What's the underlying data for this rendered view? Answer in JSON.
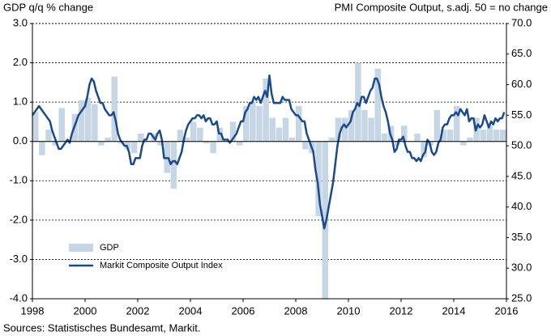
{
  "chart_data": {
    "type": "combo",
    "y_label": "GDP q/q % change",
    "y2_label": "PMI Composite Output, s.adj. 50 = no change",
    "source": "Sources: Statistisches Bundesamt, Markit.",
    "xlim": [
      1998,
      2016
    ],
    "xticks": [
      1998,
      2000,
      2002,
      2004,
      2006,
      2008,
      2010,
      2012,
      2014,
      2016
    ],
    "ylim": [
      -4,
      3
    ],
    "yticks": [
      {
        "value": 3,
        "label": "3.0"
      },
      {
        "value": 2,
        "label": "2.0"
      },
      {
        "value": 1,
        "label": "1.0"
      },
      {
        "value": 0,
        "label": "0.0"
      },
      {
        "value": -1,
        "label": "-1.0"
      },
      {
        "value": -2,
        "label": "-2.0"
      },
      {
        "value": -3,
        "label": "-3.0"
      },
      {
        "value": -4,
        "label": "-4.0"
      }
    ],
    "y2lim": [
      25,
      70
    ],
    "y2ticks": [
      {
        "value": 70,
        "label": "70.0"
      },
      {
        "value": 65,
        "label": "65.0"
      },
      {
        "value": 60,
        "label": "60.0"
      },
      {
        "value": 55,
        "label": "55.0"
      },
      {
        "value": 50,
        "label": "50.0"
      },
      {
        "value": 45,
        "label": "45.0"
      },
      {
        "value": 40,
        "label": "40.0"
      },
      {
        "value": 35,
        "label": "35.0"
      },
      {
        "value": 30,
        "label": "30.0"
      },
      {
        "value": 25,
        "label": "25.0"
      }
    ],
    "grid": true,
    "legend": "lower left",
    "series": [
      {
        "name": "GDP",
        "type": "bar",
        "color": "#c6d6e5",
        "x": [
          1998,
          1998.25,
          1998.5,
          1998.75,
          1999,
          1999.25,
          1999.5,
          1999.75,
          2000,
          2000.25,
          2000.5,
          2000.75,
          2001,
          2001.25,
          2001.5,
          2001.75,
          2002,
          2002.25,
          2002.5,
          2002.75,
          2003,
          2003.25,
          2003.5,
          2003.75,
          2004,
          2004.25,
          2004.5,
          2004.75,
          2005,
          2005.25,
          2005.5,
          2005.75,
          2006,
          2006.25,
          2006.5,
          2006.75,
          2007,
          2007.25,
          2007.5,
          2007.75,
          2008,
          2008.25,
          2008.5,
          2008.75,
          2009,
          2009.25,
          2009.5,
          2009.75,
          2010,
          2010.25,
          2010.5,
          2010.75,
          2011,
          2011.25,
          2011.5,
          2011.75,
          2012,
          2012.25,
          2012.5,
          2012.75,
          2013,
          2013.25,
          2013.5,
          2013.75,
          2014,
          2014.25,
          2014.5,
          2014.75,
          2015,
          2015.25,
          2015.5,
          2015.75
        ],
        "values": [
          0.75,
          -0.35,
          0.3,
          -0.1,
          0.85,
          0.05,
          0.7,
          1.05,
          1.1,
          0.95,
          -0.1,
          0.1,
          1.65,
          -0.05,
          -0.2,
          -0.3,
          0.2,
          0.0,
          0.2,
          -0.1,
          -0.8,
          -1.2,
          0.3,
          0.1,
          0.5,
          0.35,
          -0.05,
          -0.3,
          0.35,
          0.0,
          0.5,
          -0.1,
          0.9,
          1.0,
          0.9,
          1.6,
          0.6,
          0.35,
          0.6,
          0.1,
          0.9,
          -0.2,
          -0.3,
          -1.9,
          -4.0,
          0.1,
          0.6,
          0.6,
          0.8,
          2.0,
          0.8,
          0.6,
          1.85,
          0.2,
          0.4,
          -0.1,
          0.4,
          0.0,
          0.2,
          -0.4,
          -0.1,
          0.8,
          0.3,
          0.3,
          0.9,
          -0.1,
          0.1,
          0.6,
          0.3,
          0.4,
          0.3,
          0.3
        ]
      },
      {
        "name": "Markit Composite Output Index",
        "type": "line",
        "axis": "y2",
        "color": "#1b4a8a",
        "x": [
          1998,
          1998.083,
          1998.167,
          1998.25,
          1998.333,
          1998.417,
          1998.5,
          1998.583,
          1998.667,
          1998.75,
          1998.833,
          1998.917,
          1999,
          1999.083,
          1999.167,
          1999.25,
          1999.333,
          1999.417,
          1999.5,
          1999.583,
          1999.667,
          1999.75,
          1999.833,
          1999.917,
          2000,
          2000.083,
          2000.167,
          2000.25,
          2000.333,
          2000.417,
          2000.5,
          2000.583,
          2000.667,
          2000.75,
          2000.833,
          2000.917,
          2001,
          2001.083,
          2001.167,
          2001.25,
          2001.333,
          2001.417,
          2001.5,
          2001.583,
          2001.667,
          2001.75,
          2001.833,
          2001.917,
          2002,
          2002.083,
          2002.167,
          2002.25,
          2002.333,
          2002.417,
          2002.5,
          2002.583,
          2002.667,
          2002.75,
          2002.833,
          2002.917,
          2003,
          2003.083,
          2003.167,
          2003.25,
          2003.333,
          2003.417,
          2003.5,
          2003.583,
          2003.667,
          2003.75,
          2003.833,
          2003.917,
          2004,
          2004.083,
          2004.167,
          2004.25,
          2004.333,
          2004.417,
          2004.5,
          2004.583,
          2004.667,
          2004.75,
          2004.833,
          2004.917,
          2005,
          2005.083,
          2005.167,
          2005.25,
          2005.333,
          2005.417,
          2005.5,
          2005.583,
          2005.667,
          2005.75,
          2005.833,
          2005.917,
          2006,
          2006.083,
          2006.167,
          2006.25,
          2006.333,
          2006.417,
          2006.5,
          2006.583,
          2006.667,
          2006.75,
          2006.833,
          2006.917,
          2007,
          2007.083,
          2007.167,
          2007.25,
          2007.333,
          2007.417,
          2007.5,
          2007.583,
          2007.667,
          2007.75,
          2007.833,
          2007.917,
          2008,
          2008.083,
          2008.167,
          2008.25,
          2008.333,
          2008.417,
          2008.5,
          2008.583,
          2008.667,
          2008.75,
          2008.833,
          2008.917,
          2009,
          2009.083,
          2009.167,
          2009.25,
          2009.333,
          2009.417,
          2009.5,
          2009.583,
          2009.667,
          2009.75,
          2009.833,
          2009.917,
          2010,
          2010.083,
          2010.167,
          2010.25,
          2010.333,
          2010.417,
          2010.5,
          2010.583,
          2010.667,
          2010.75,
          2010.833,
          2010.917,
          2011,
          2011.083,
          2011.167,
          2011.25,
          2011.333,
          2011.417,
          2011.5,
          2011.583,
          2011.667,
          2011.75,
          2011.833,
          2011.917,
          2012,
          2012.083,
          2012.167,
          2012.25,
          2012.333,
          2012.417,
          2012.5,
          2012.583,
          2012.667,
          2012.75,
          2012.833,
          2012.917,
          2013,
          2013.083,
          2013.167,
          2013.25,
          2013.333,
          2013.417,
          2013.5,
          2013.583,
          2013.667,
          2013.75,
          2013.833,
          2013.917,
          2014,
          2014.083,
          2014.167,
          2014.25,
          2014.333,
          2014.417,
          2014.5,
          2014.583,
          2014.667,
          2014.75,
          2014.833,
          2014.917,
          2015,
          2015.083,
          2015.167,
          2015.25,
          2015.333,
          2015.417,
          2015.5,
          2015.583,
          2015.667,
          2015.75,
          2015.833,
          2015.917
        ],
        "values": [
          55,
          55.5,
          56,
          56.5,
          56,
          55.5,
          55,
          54.5,
          54,
          52.5,
          51.5,
          50.5,
          49.5,
          49.5,
          50,
          50.5,
          51,
          50.5,
          52,
          53,
          54,
          55,
          55.5,
          56,
          56.5,
          58,
          60,
          61,
          60.5,
          59,
          58,
          57,
          57,
          56,
          55.5,
          55,
          55,
          55.5,
          54,
          52,
          51,
          50.5,
          50,
          50,
          49,
          47,
          47,
          48,
          48,
          48,
          50,
          51,
          51,
          52,
          52,
          51.5,
          51,
          52,
          52.5,
          51,
          48,
          48,
          48,
          47,
          47.5,
          47.5,
          47,
          48,
          49,
          51,
          52.5,
          53.5,
          54,
          54.5,
          54.5,
          55,
          55,
          54.5,
          55,
          54,
          54.5,
          54.5,
          53.5,
          53.5,
          54,
          52,
          52,
          51,
          51,
          51,
          50.5,
          51,
          51.5,
          52,
          53,
          54,
          54,
          55.5,
          56,
          57,
          57,
          58,
          57.5,
          58,
          57,
          58,
          59,
          58,
          61.5,
          58.5,
          57,
          57,
          57,
          57,
          58,
          57.5,
          57.5,
          57.5,
          56,
          55.5,
          55,
          55,
          54.5,
          54,
          54,
          52,
          51,
          50,
          49,
          46,
          44,
          40.5,
          38.5,
          36.5,
          38,
          40,
          42,
          44,
          47,
          50,
          52,
          53,
          53.5,
          53,
          53.5,
          54,
          55.5,
          56,
          57,
          56.5,
          58,
          58,
          57,
          58,
          59,
          59.5,
          61,
          61,
          60,
          58,
          56.5,
          55.5,
          54,
          52,
          51,
          49,
          49.5,
          51,
          51,
          51.5,
          50,
          49,
          49,
          48,
          48,
          47.5,
          48,
          47.5,
          48.5,
          49,
          51,
          50.5,
          49,
          48.5,
          49,
          50.5,
          51,
          53,
          53.5,
          53.5,
          54.5,
          55,
          55,
          55.5,
          55,
          56,
          55.5,
          55,
          56,
          54,
          54.5,
          54.5,
          52.5,
          53.5,
          53,
          53.5,
          55,
          54,
          53,
          54,
          53.5,
          54.5,
          54,
          54.5,
          54.5,
          55.5
        ]
      }
    ]
  }
}
